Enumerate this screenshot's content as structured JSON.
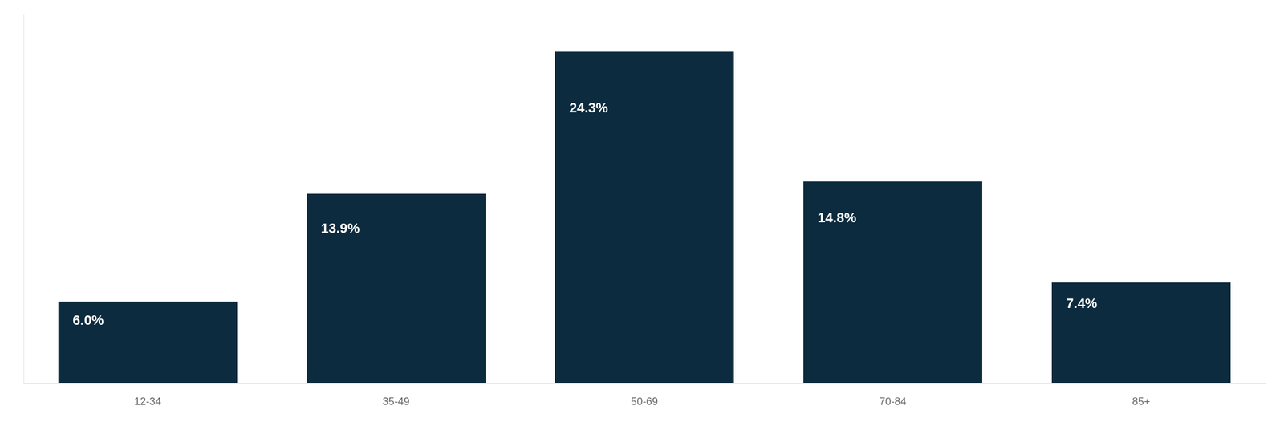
{
  "chart_data": {
    "type": "bar",
    "categories": [
      "12-34",
      "35-49",
      "50-69",
      "70-84",
      "85+"
    ],
    "values": [
      6.0,
      13.9,
      24.3,
      14.8,
      7.4
    ],
    "value_labels": [
      "6.0%",
      "13.9%",
      "24.3%",
      "14.8%",
      "7.4%"
    ],
    "data_labels": true,
    "color": "#0d2b3e",
    "ylim": [
      0,
      27
    ],
    "grid": false,
    "tick_labels": "x"
  }
}
